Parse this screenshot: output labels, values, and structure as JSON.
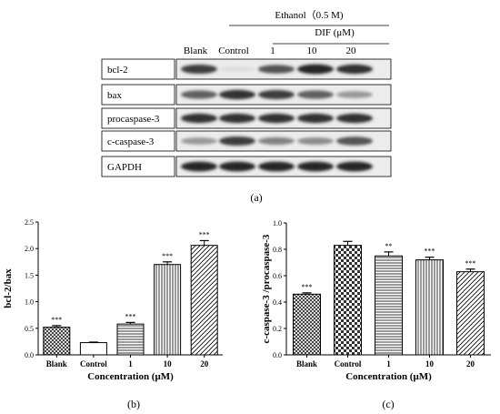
{
  "blot": {
    "header_treatment": "Ethanol（0.5 M)",
    "header_drug": "DIF (μM)",
    "lanes": [
      "Blank",
      "Control",
      "1",
      "10",
      "20"
    ],
    "bands": [
      "bcl-2",
      "bax",
      "procaspase-3",
      "c-caspase-3",
      "GAPDH"
    ],
    "panel_label": "(a)"
  },
  "chart_data": [
    {
      "type": "bar",
      "panel_label": "(b)",
      "categories": [
        "Blank",
        "Control",
        "1",
        "10",
        "20"
      ],
      "values": [
        0.52,
        0.23,
        0.58,
        1.7,
        2.06
      ],
      "errors": [
        0.03,
        0.01,
        0.03,
        0.05,
        0.09
      ],
      "significance": [
        "***",
        "",
        "***",
        "***",
        "***"
      ],
      "xlabel": "Concentration (μM)",
      "ylabel": "bcl-2/bax",
      "ylim": [
        0,
        2.5
      ],
      "yticks": [
        "0.0",
        "0.5",
        "1.0",
        "1.5",
        "2.0",
        "2.5"
      ],
      "patterns": [
        "crosshatch",
        "blank",
        "horizontal",
        "vertical",
        "diagonal"
      ]
    },
    {
      "type": "bar",
      "panel_label": "(c)",
      "categories": [
        "Blank",
        "Control",
        "1",
        "10",
        "20"
      ],
      "values": [
        0.46,
        0.83,
        0.75,
        0.72,
        0.63
      ],
      "errors": [
        0.01,
        0.03,
        0.03,
        0.02,
        0.02
      ],
      "significance": [
        "***",
        "",
        "**",
        "***",
        "***"
      ],
      "xlabel": "Concentration (μM)",
      "ylabel": "c-caspase-3 /procaspase-3",
      "ylim": [
        0,
        1.0
      ],
      "yticks": [
        "0.0",
        "0.2",
        "0.4",
        "0.6",
        "0.8",
        "1.0"
      ],
      "patterns": [
        "crosshatch",
        "checker",
        "horizontal",
        "vertical",
        "diagonal"
      ]
    }
  ]
}
